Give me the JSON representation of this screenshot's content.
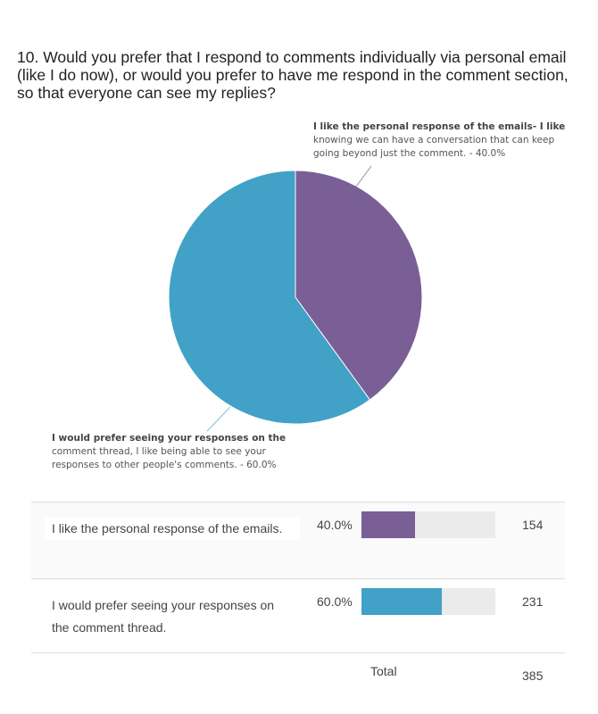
{
  "chart_data": {
    "type": "pie",
    "title": "10. Would you prefer that I respond to comments individually via personal email (like I do now), or would you prefer to have me respond in the comment section, so that everyone can see my replies?",
    "slices": [
      {
        "name": "I like the personal response of the emails",
        "label_bold": "I like the personal response of the emails- I like",
        "label_rest": "knowing we can have a conversation that can keep going beyond just the comment. - 40.0%",
        "value": 40.0,
        "color": "#7a5f96"
      },
      {
        "name": "I would prefer seeing your responses on the comment thread",
        "label_bold": "I would prefer seeing your responses on the",
        "label_rest": "comment thread, I like being able to see your responses to other people's comments. - 60.0%",
        "value": 60.0,
        "color": "#41a1c6"
      }
    ]
  },
  "table": {
    "rows": [
      {
        "answer": "I like the personal response of the emails.",
        "percent": "40.0%",
        "fraction": 0.4,
        "count": "154",
        "color": "#7a5f96"
      },
      {
        "answer": "I would prefer seeing your responses on the comment thread.",
        "percent": "60.0%",
        "fraction": 0.6,
        "count": "231",
        "color": "#41a1c6"
      }
    ],
    "total_label": "Total",
    "total": "385"
  }
}
